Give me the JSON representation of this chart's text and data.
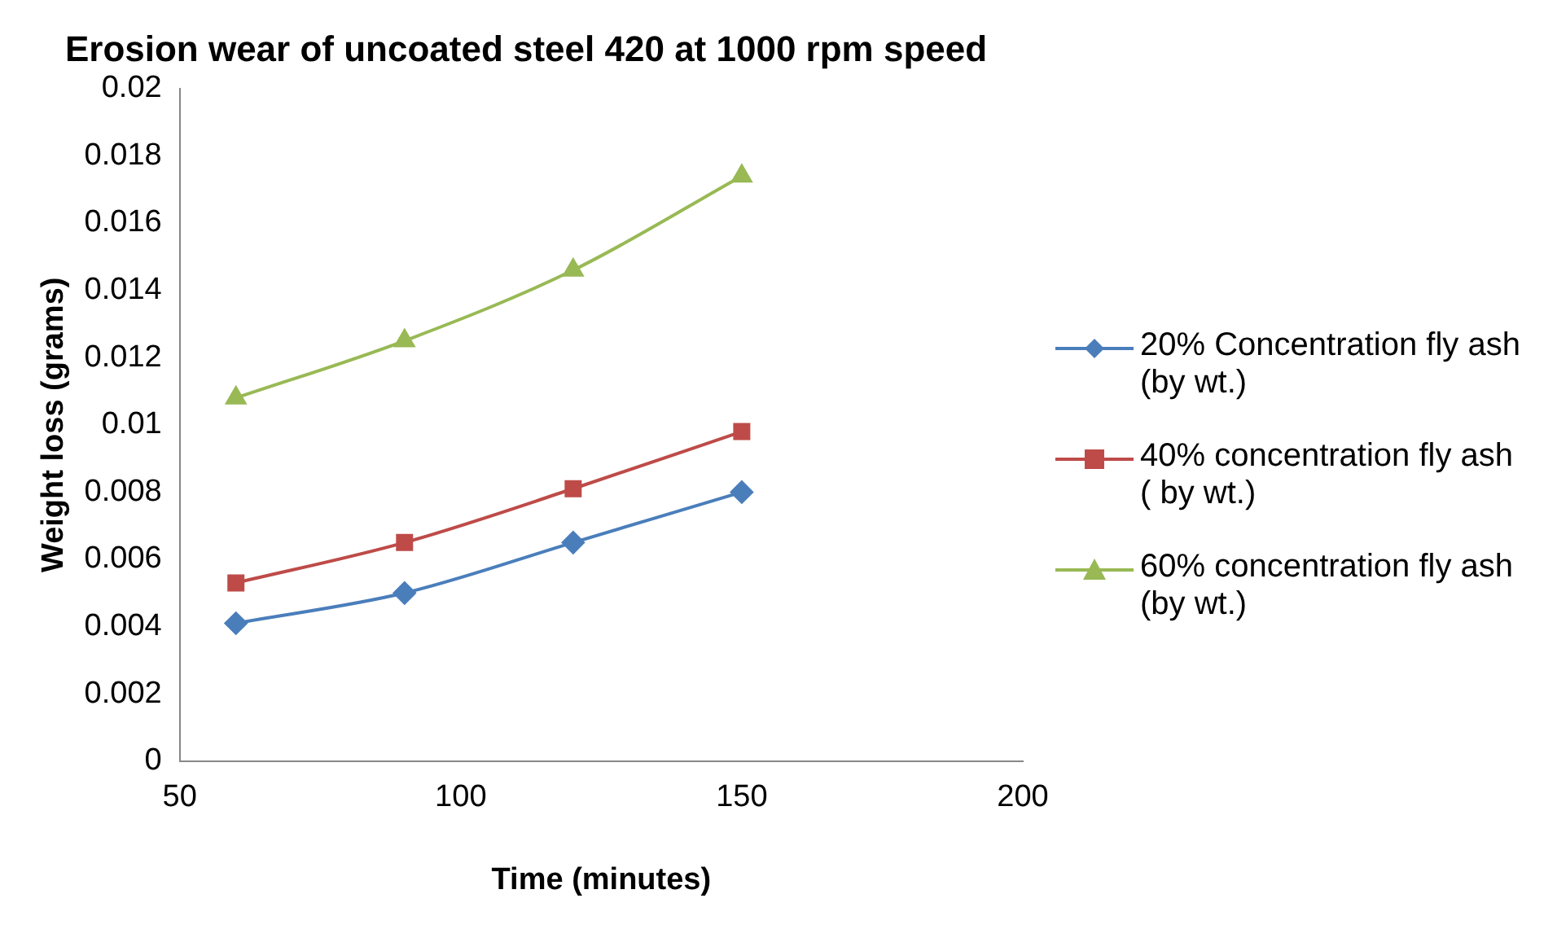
{
  "chart_data": {
    "type": "line",
    "title": "Erosion wear of uncoated steel 420 at 1000 rpm speed",
    "xlabel": "Time (minutes)",
    "ylabel": "Weight loss (grams)",
    "x": [
      60,
      90,
      120,
      150
    ],
    "series": [
      {
        "name": "20% Concentration fly ash (by wt.)",
        "color": "#4a7ebb",
        "marker": "diamond",
        "values": [
          0.0041,
          0.005,
          0.0065,
          0.008
        ]
      },
      {
        "name": "40% concentration fly ash ( by wt.)",
        "color": "#be4b48",
        "marker": "square",
        "values": [
          0.0053,
          0.0065,
          0.0081,
          0.0098
        ]
      },
      {
        "name": "60% concentration fly ash (by wt.)",
        "color": "#98b954",
        "marker": "triangle",
        "values": [
          0.0108,
          0.0125,
          0.0146,
          0.0174
        ]
      }
    ],
    "xlim": [
      50,
      200
    ],
    "xticks": [
      50,
      100,
      150,
      200
    ],
    "ylim": [
      0,
      0.02
    ],
    "yticks": [
      0,
      0.002,
      0.004,
      0.006,
      0.008,
      0.01,
      0.012,
      0.014,
      0.016,
      0.018,
      0.02
    ],
    "grid": false,
    "legend": "right"
  }
}
